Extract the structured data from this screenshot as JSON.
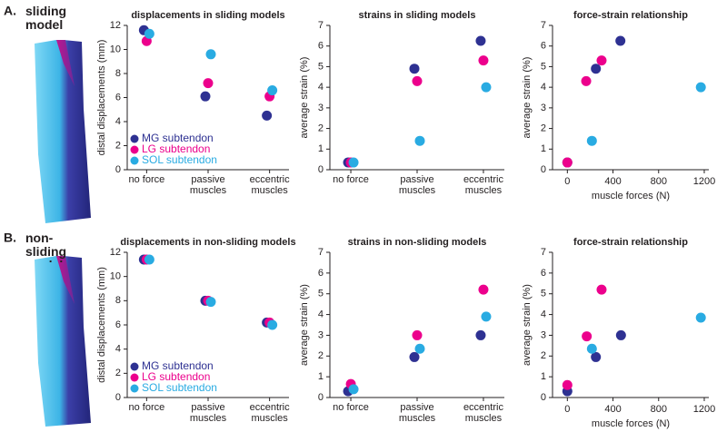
{
  "panels": [
    {
      "label": "A.",
      "title": "sliding model"
    },
    {
      "label": "B.",
      "title": "non-sliding model"
    }
  ],
  "chart_data": [
    {
      "type": "dot",
      "title": "displacements in sliding models",
      "ylabel": "distal displacements (mm)",
      "categories": [
        "no force",
        "passive muscles",
        "eccentric muscles"
      ],
      "ylim": [
        0,
        12
      ],
      "yticks": [
        0,
        2,
        4,
        6,
        8,
        10,
        12
      ],
      "legend": "lower left",
      "series": [
        {
          "name": "MG subtendon",
          "color": "#2e3192",
          "values": [
            11.6,
            6.1,
            4.5
          ]
        },
        {
          "name": "LG subtendon",
          "color": "#ec008c",
          "values": [
            10.7,
            7.2,
            6.1
          ]
        },
        {
          "name": "SOL subtendon",
          "color": "#29abe2",
          "values": [
            11.3,
            9.6,
            6.6
          ]
        }
      ]
    },
    {
      "type": "dot",
      "title": "strains in sliding models",
      "ylabel": "average strain (%)",
      "categories": [
        "no force",
        "passive muscles",
        "eccentric muscles"
      ],
      "ylim": [
        0,
        7
      ],
      "yticks": [
        0,
        1,
        2,
        3,
        4,
        5,
        6,
        7
      ],
      "series": [
        {
          "color": "#2e3192",
          "values": [
            0.35,
            4.9,
            6.25
          ]
        },
        {
          "color": "#ec008c",
          "values": [
            0.35,
            4.3,
            5.3
          ]
        },
        {
          "color": "#29abe2",
          "values": [
            0.35,
            1.4,
            4.0
          ]
        }
      ]
    },
    {
      "type": "scatter",
      "title": "force-strain relationship",
      "ylabel": "average strain (%)",
      "xlabel": "muscle forces (N)",
      "xlim": [
        -130,
        1240
      ],
      "xticks": [
        0,
        400,
        800,
        1200
      ],
      "ylim": [
        0,
        7
      ],
      "yticks": [
        0,
        1,
        2,
        3,
        4,
        5,
        6,
        7
      ],
      "series": [
        {
          "color": "#2e3192",
          "x": [
            0,
            250,
            465
          ],
          "values": [
            0.35,
            4.9,
            6.25
          ]
        },
        {
          "color": "#ec008c",
          "x": [
            0,
            165,
            300
          ],
          "values": [
            0.35,
            4.3,
            5.3
          ]
        },
        {
          "color": "#29abe2",
          "x": [
            215,
            1170
          ],
          "values": [
            1.4,
            4.0
          ]
        }
      ]
    },
    {
      "type": "dot",
      "title": "displacements in non-sliding models",
      "ylabel": "distal displacements (mm)",
      "categories": [
        "no force",
        "passive muscles",
        "eccentric muscles"
      ],
      "ylim": [
        0,
        12
      ],
      "yticks": [
        0,
        2,
        4,
        6,
        8,
        10,
        12
      ],
      "legend": "lower left",
      "series": [
        {
          "name": "MG subtendon",
          "color": "#2e3192",
          "values": [
            11.4,
            8.0,
            6.2
          ]
        },
        {
          "name": "LG subtendon",
          "color": "#ec008c",
          "values": [
            11.4,
            8.0,
            6.2
          ]
        },
        {
          "name": "SOL subtendon",
          "color": "#29abe2",
          "values": [
            11.4,
            7.9,
            6.0
          ]
        }
      ]
    },
    {
      "type": "dot",
      "title": "strains in non-sliding models",
      "ylabel": "average strain (%)",
      "categories": [
        "no force",
        "passive muscles",
        "eccentric muscles"
      ],
      "ylim": [
        0,
        7
      ],
      "yticks": [
        0,
        1,
        2,
        3,
        4,
        5,
        6,
        7
      ],
      "series": [
        {
          "color": "#2e3192",
          "values": [
            0.3,
            1.95,
            3.0
          ]
        },
        {
          "color": "#ec008c",
          "values": [
            0.65,
            3.0,
            5.2
          ]
        },
        {
          "color": "#29abe2",
          "values": [
            0.4,
            2.35,
            3.9
          ]
        }
      ]
    },
    {
      "type": "scatter",
      "title": "force-strain relationship",
      "ylabel": "average strain (%)",
      "xlabel": "muscle forces (N)",
      "xlim": [
        -130,
        1240
      ],
      "xticks": [
        0,
        400,
        800,
        1200
      ],
      "ylim": [
        0,
        7
      ],
      "yticks": [
        0,
        1,
        2,
        3,
        4,
        5,
        6,
        7
      ],
      "series": [
        {
          "color": "#2e3192",
          "x": [
            0,
            250,
            470
          ],
          "values": [
            0.3,
            1.95,
            3.0
          ]
        },
        {
          "color": "#ec008c",
          "x": [
            0,
            170,
            300
          ],
          "values": [
            0.6,
            2.95,
            5.2
          ]
        },
        {
          "color": "#29abe2",
          "x": [
            215,
            1170
          ],
          "values": [
            2.35,
            3.85
          ]
        }
      ]
    }
  ]
}
